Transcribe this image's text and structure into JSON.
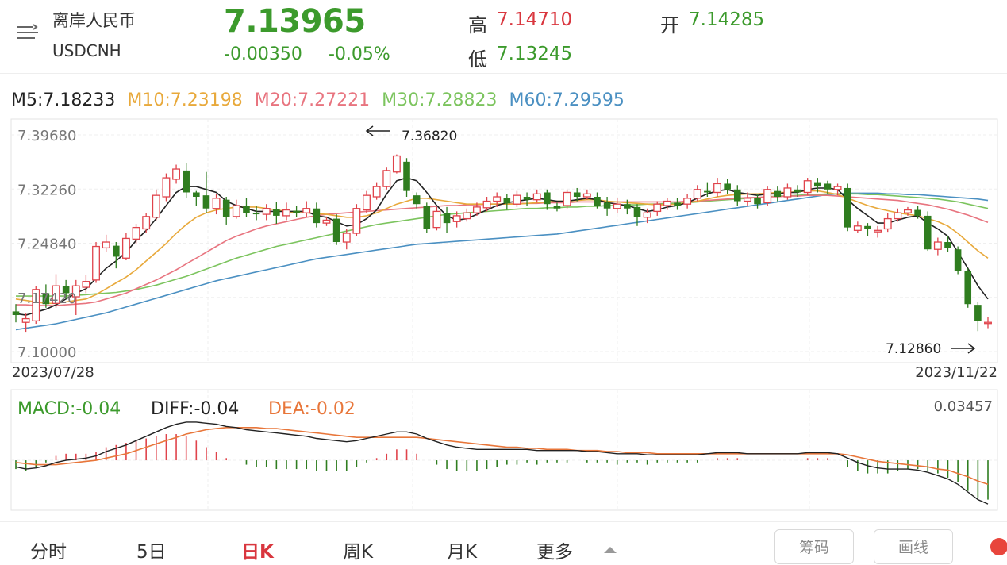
{
  "header": {
    "name": "离岸人民币",
    "code": "USDCNH",
    "price": "7.13965",
    "change": "-0.00350",
    "change_pct": "-0.05%",
    "high_label": "高",
    "high": "7.14710",
    "low_label": "低",
    "low": "7.13245",
    "open_label": "开",
    "open": "7.14285"
  },
  "ma_legend": {
    "m5": "M5:7.18233",
    "m10": "M10:7.23198",
    "m20": "M20:7.27221",
    "m30": "M30:7.28823",
    "m60": "M60:7.29595"
  },
  "colors": {
    "up": "#e0434b",
    "down": "#2f7d1f",
    "ma5": "#222222",
    "ma10": "#e8a93b",
    "ma20": "#e8747f",
    "ma30": "#7cc45e",
    "ma60": "#4b90c2",
    "macd_label": "#3c9a2c",
    "dea": "#e8763a"
  },
  "chart_data": {
    "type": "candlestick",
    "y_ticks": [
      "7.39680",
      "7.32260",
      "7.24840",
      "7.17420",
      "7.10000"
    ],
    "ylim": [
      7.1,
      7.3968
    ],
    "x_start": "2023/07/28",
    "x_end": "2023/11/22",
    "annotation_high": "7.36820",
    "annotation_low": "7.12860",
    "candles": [
      [
        7.155,
        7.15,
        7.165,
        7.14
      ],
      [
        7.14,
        7.145,
        7.152,
        7.126
      ],
      [
        7.142,
        7.185,
        7.19,
        7.138
      ],
      [
        7.18,
        7.165,
        7.192,
        7.16
      ],
      [
        7.166,
        7.19,
        7.206,
        7.16
      ],
      [
        7.19,
        7.18,
        7.198,
        7.172
      ],
      [
        7.175,
        7.19,
        7.198,
        7.15
      ],
      [
        7.188,
        7.196,
        7.205,
        7.18
      ],
      [
        7.198,
        7.244,
        7.25,
        7.194
      ],
      [
        7.242,
        7.25,
        7.26,
        7.236
      ],
      [
        7.245,
        7.23,
        7.25,
        7.214
      ],
      [
        7.228,
        7.255,
        7.262,
        7.225
      ],
      [
        7.254,
        7.27,
        7.275,
        7.248
      ],
      [
        7.268,
        7.285,
        7.29,
        7.262
      ],
      [
        7.284,
        7.314,
        7.322,
        7.28
      ],
      [
        7.312,
        7.338,
        7.344,
        7.306
      ],
      [
        7.336,
        7.35,
        7.356,
        7.33
      ],
      [
        7.348,
        7.318,
        7.358,
        7.31
      ],
      [
        7.318,
        7.312,
        7.32,
        7.3
      ],
      [
        7.314,
        7.296,
        7.346,
        7.29
      ],
      [
        7.296,
        7.31,
        7.316,
        7.288
      ],
      [
        7.308,
        7.284,
        7.312,
        7.274
      ],
      [
        7.285,
        7.3,
        7.308,
        7.282
      ],
      [
        7.3,
        7.29,
        7.31,
        7.284
      ],
      [
        7.29,
        7.288,
        7.3,
        7.28
      ],
      [
        7.288,
        7.296,
        7.302,
        7.28
      ],
      [
        7.295,
        7.286,
        7.305,
        7.275
      ],
      [
        7.286,
        7.294,
        7.304,
        7.28
      ],
      [
        7.293,
        7.29,
        7.3,
        7.284
      ],
      [
        7.29,
        7.296,
        7.306,
        7.284
      ],
      [
        7.296,
        7.276,
        7.304,
        7.27
      ],
      [
        7.276,
        7.28,
        7.285,
        7.272
      ],
      [
        7.282,
        7.25,
        7.288,
        7.246
      ],
      [
        7.25,
        7.262,
        7.268,
        7.24
      ],
      [
        7.262,
        7.296,
        7.302,
        7.258
      ],
      [
        7.294,
        7.314,
        7.32,
        7.29
      ],
      [
        7.312,
        7.326,
        7.332,
        7.308
      ],
      [
        7.326,
        7.348,
        7.352,
        7.322
      ],
      [
        7.346,
        7.368,
        7.37,
        7.344
      ],
      [
        7.36,
        7.32,
        7.365,
        7.312
      ],
      [
        7.314,
        7.302,
        7.318,
        7.296
      ],
      [
        7.3,
        7.268,
        7.304,
        7.262
      ],
      [
        7.27,
        7.292,
        7.298,
        7.266
      ],
      [
        7.29,
        7.276,
        7.298,
        7.262
      ],
      [
        7.278,
        7.286,
        7.292,
        7.27
      ],
      [
        7.282,
        7.29,
        7.296,
        7.278
      ],
      [
        7.29,
        7.298,
        7.304,
        7.286
      ],
      [
        7.297,
        7.306,
        7.312,
        7.292
      ],
      [
        7.306,
        7.312,
        7.318,
        7.298
      ],
      [
        7.31,
        7.303,
        7.316,
        7.294
      ],
      [
        7.302,
        7.314,
        7.32,
        7.298
      ],
      [
        7.312,
        7.308,
        7.318,
        7.3
      ],
      [
        7.308,
        7.316,
        7.322,
        7.304
      ],
      [
        7.318,
        7.302,
        7.322,
        7.294
      ],
      [
        7.3,
        7.296,
        7.304,
        7.292
      ],
      [
        7.3,
        7.318,
        7.322,
        7.296
      ],
      [
        7.318,
        7.312,
        7.324,
        7.306
      ],
      [
        7.312,
        7.316,
        7.322,
        7.308
      ],
      [
        7.312,
        7.3,
        7.318,
        7.296
      ],
      [
        7.304,
        7.296,
        7.312,
        7.286
      ],
      [
        7.296,
        7.302,
        7.31,
        7.29
      ],
      [
        7.302,
        7.296,
        7.308,
        7.288
      ],
      [
        7.298,
        7.284,
        7.302,
        7.272
      ],
      [
        7.284,
        7.29,
        7.296,
        7.276
      ],
      [
        7.292,
        7.302,
        7.306,
        7.286
      ],
      [
        7.3,
        7.306,
        7.31,
        7.294
      ],
      [
        7.304,
        7.3,
        7.31,
        7.294
      ],
      [
        7.302,
        7.31,
        7.316,
        7.296
      ],
      [
        7.31,
        7.322,
        7.328,
        7.306
      ],
      [
        7.32,
        7.318,
        7.332,
        7.312
      ],
      [
        7.318,
        7.33,
        7.338,
        7.312
      ],
      [
        7.33,
        7.322,
        7.336,
        7.316
      ],
      [
        7.322,
        7.306,
        7.328,
        7.3
      ],
      [
        7.306,
        7.31,
        7.318,
        7.3
      ],
      [
        7.31,
        7.302,
        7.316,
        7.296
      ],
      [
        7.304,
        7.322,
        7.326,
        7.3
      ],
      [
        7.32,
        7.312,
        7.326,
        7.306
      ],
      [
        7.312,
        7.324,
        7.33,
        7.308
      ],
      [
        7.322,
        7.318,
        7.328,
        7.312
      ],
      [
        7.318,
        7.334,
        7.338,
        7.314
      ],
      [
        7.332,
        7.326,
        7.338,
        7.318
      ],
      [
        7.33,
        7.322,
        7.334,
        7.316
      ],
      [
        7.322,
        7.326,
        7.33,
        7.314
      ],
      [
        7.324,
        7.27,
        7.33,
        7.265
      ],
      [
        7.266,
        7.272,
        7.278,
        7.262
      ],
      [
        7.272,
        7.268,
        7.276,
        7.258
      ],
      [
        7.264,
        7.266,
        7.272,
        7.256
      ],
      [
        7.268,
        7.282,
        7.29,
        7.264
      ],
      [
        7.282,
        7.29,
        7.296,
        7.278
      ],
      [
        7.29,
        7.294,
        7.298,
        7.286
      ],
      [
        7.294,
        7.286,
        7.3,
        7.282
      ],
      [
        7.286,
        7.24,
        7.292,
        7.238
      ],
      [
        7.24,
        7.25,
        7.256,
        7.232
      ],
      [
        7.25,
        7.242,
        7.258,
        7.236
      ],
      [
        7.24,
        7.21,
        7.244,
        7.206
      ],
      [
        7.21,
        7.165,
        7.214,
        7.16
      ],
      [
        7.164,
        7.142,
        7.168,
        7.128
      ],
      [
        7.14,
        7.14,
        7.147,
        7.132
      ]
    ],
    "ma": {
      "ma5": [
        7.152,
        7.15,
        7.154,
        7.158,
        7.164,
        7.172,
        7.18,
        7.186,
        7.2,
        7.214,
        7.224,
        7.236,
        7.252,
        7.266,
        7.282,
        7.3,
        7.318,
        7.326,
        7.326,
        7.322,
        7.318,
        7.306,
        7.3,
        7.296,
        7.292,
        7.292,
        7.292,
        7.292,
        7.292,
        7.292,
        7.286,
        7.284,
        7.278,
        7.272,
        7.274,
        7.282,
        7.294,
        7.316,
        7.334,
        7.338,
        7.334,
        7.318,
        7.3,
        7.286,
        7.28,
        7.282,
        7.288,
        7.294,
        7.3,
        7.304,
        7.306,
        7.308,
        7.31,
        7.308,
        7.306,
        7.306,
        7.308,
        7.31,
        7.308,
        7.304,
        7.302,
        7.3,
        7.296,
        7.292,
        7.294,
        7.298,
        7.3,
        7.304,
        7.31,
        7.316,
        7.32,
        7.322,
        7.318,
        7.316,
        7.314,
        7.316,
        7.316,
        7.318,
        7.318,
        7.322,
        7.324,
        7.324,
        7.322,
        7.308,
        7.296,
        7.286,
        7.276,
        7.276,
        7.28,
        7.284,
        7.286,
        7.276,
        7.268,
        7.258,
        7.236,
        7.214,
        7.19,
        7.172
      ],
      "ma10": [
        7.172,
        7.17,
        7.168,
        7.166,
        7.166,
        7.168,
        7.17,
        7.172,
        7.178,
        7.186,
        7.194,
        7.202,
        7.212,
        7.224,
        7.236,
        7.248,
        7.262,
        7.274,
        7.284,
        7.29,
        7.294,
        7.296,
        7.298,
        7.298,
        7.298,
        7.296,
        7.294,
        7.292,
        7.29,
        7.29,
        7.289,
        7.288,
        7.286,
        7.284,
        7.284,
        7.286,
        7.29,
        7.296,
        7.302,
        7.306,
        7.31,
        7.31,
        7.308,
        7.306,
        7.304,
        7.302,
        7.302,
        7.302,
        7.302,
        7.302,
        7.302,
        7.303,
        7.304,
        7.305,
        7.306,
        7.306,
        7.307,
        7.308,
        7.308,
        7.306,
        7.305,
        7.304,
        7.303,
        7.302,
        7.301,
        7.301,
        7.302,
        7.304,
        7.306,
        7.309,
        7.312,
        7.314,
        7.315,
        7.316,
        7.316,
        7.317,
        7.318,
        7.318,
        7.319,
        7.32,
        7.32,
        7.318,
        7.315,
        7.31,
        7.305,
        7.3,
        7.296,
        7.293,
        7.29,
        7.288,
        7.286,
        7.282,
        7.278,
        7.272,
        7.262,
        7.25,
        7.238,
        7.228
      ],
      "ma20": [
        7.164,
        7.164,
        7.163,
        7.163,
        7.163,
        7.164,
        7.165,
        7.166,
        7.168,
        7.172,
        7.176,
        7.18,
        7.186,
        7.192,
        7.198,
        7.205,
        7.212,
        7.22,
        7.228,
        7.236,
        7.244,
        7.252,
        7.258,
        7.263,
        7.268,
        7.272,
        7.275,
        7.278,
        7.281,
        7.284,
        7.286,
        7.288,
        7.289,
        7.29,
        7.291,
        7.292,
        7.293,
        7.294,
        7.295,
        7.296,
        7.297,
        7.298,
        7.299,
        7.3,
        7.3,
        7.301,
        7.301,
        7.302,
        7.302,
        7.302,
        7.303,
        7.303,
        7.303,
        7.304,
        7.304,
        7.304,
        7.305,
        7.305,
        7.305,
        7.305,
        7.305,
        7.305,
        7.305,
        7.305,
        7.305,
        7.305,
        7.305,
        7.306,
        7.306,
        7.307,
        7.308,
        7.309,
        7.31,
        7.311,
        7.311,
        7.312,
        7.312,
        7.313,
        7.313,
        7.314,
        7.314,
        7.314,
        7.313,
        7.312,
        7.311,
        7.31,
        7.309,
        7.308,
        7.307,
        7.305,
        7.303,
        7.301,
        7.298,
        7.295,
        7.291,
        7.287,
        7.282,
        7.277
      ],
      "ma30": [
        7.176,
        7.176,
        7.176,
        7.176,
        7.176,
        7.176,
        7.177,
        7.178,
        7.179,
        7.18,
        7.181,
        7.183,
        7.185,
        7.188,
        7.191,
        7.195,
        7.199,
        7.203,
        7.208,
        7.213,
        7.218,
        7.223,
        7.228,
        7.232,
        7.236,
        7.24,
        7.244,
        7.247,
        7.25,
        7.253,
        7.256,
        7.259,
        7.262,
        7.265,
        7.268,
        7.271,
        7.274,
        7.276,
        7.278,
        7.28,
        7.282,
        7.284,
        7.286,
        7.288,
        7.289,
        7.29,
        7.291,
        7.292,
        7.293,
        7.294,
        7.295,
        7.296,
        7.296,
        7.297,
        7.297,
        7.298,
        7.298,
        7.299,
        7.299,
        7.3,
        7.3,
        7.301,
        7.301,
        7.302,
        7.302,
        7.303,
        7.303,
        7.304,
        7.305,
        7.306,
        7.307,
        7.308,
        7.309,
        7.31,
        7.311,
        7.312,
        7.313,
        7.313,
        7.314,
        7.315,
        7.315,
        7.316,
        7.316,
        7.316,
        7.316,
        7.315,
        7.315,
        7.314,
        7.313,
        7.312,
        7.311,
        7.31,
        7.309,
        7.307,
        7.305,
        7.302,
        7.299,
        7.296
      ],
      "ma60": [
        7.13,
        7.132,
        7.134,
        7.136,
        7.138,
        7.141,
        7.144,
        7.147,
        7.15,
        7.153,
        7.157,
        7.161,
        7.165,
        7.169,
        7.173,
        7.177,
        7.181,
        7.185,
        7.189,
        7.193,
        7.197,
        7.2,
        7.203,
        7.206,
        7.209,
        7.212,
        7.215,
        7.218,
        7.221,
        7.224,
        7.227,
        7.229,
        7.231,
        7.233,
        7.235,
        7.237,
        7.239,
        7.241,
        7.243,
        7.245,
        7.247,
        7.248,
        7.249,
        7.25,
        7.251,
        7.252,
        7.253,
        7.254,
        7.255,
        7.256,
        7.257,
        7.258,
        7.259,
        7.26,
        7.261,
        7.263,
        7.265,
        7.267,
        7.269,
        7.271,
        7.273,
        7.275,
        7.277,
        7.279,
        7.281,
        7.283,
        7.285,
        7.287,
        7.289,
        7.291,
        7.293,
        7.295,
        7.297,
        7.299,
        7.301,
        7.303,
        7.305,
        7.307,
        7.309,
        7.311,
        7.313,
        7.315,
        7.316,
        7.317,
        7.317,
        7.317,
        7.317,
        7.316,
        7.316,
        7.315,
        7.315,
        7.314,
        7.313,
        7.312,
        7.311,
        7.31,
        7.309,
        7.307
      ]
    },
    "macd": {
      "macd_label": "MACD:-0.04",
      "diff_label": "DIFF:-0.04",
      "dea_label": "DEA:-0.02",
      "right_value": "0.03457",
      "ylim": [
        -0.045,
        0.04
      ],
      "diff": [
        -0.006,
        -0.008,
        -0.007,
        -0.005,
        -0.002,
        0.0,
        0.001,
        0.002,
        0.004,
        0.008,
        0.011,
        0.014,
        0.018,
        0.022,
        0.026,
        0.03,
        0.033,
        0.035,
        0.035,
        0.034,
        0.033,
        0.031,
        0.03,
        0.028,
        0.027,
        0.026,
        0.025,
        0.024,
        0.023,
        0.022,
        0.02,
        0.019,
        0.018,
        0.017,
        0.018,
        0.02,
        0.022,
        0.024,
        0.026,
        0.026,
        0.024,
        0.02,
        0.017,
        0.014,
        0.012,
        0.011,
        0.01,
        0.01,
        0.01,
        0.01,
        0.01,
        0.01,
        0.009,
        0.009,
        0.009,
        0.009,
        0.009,
        0.008,
        0.008,
        0.007,
        0.006,
        0.006,
        0.006,
        0.005,
        0.005,
        0.005,
        0.005,
        0.005,
        0.005,
        0.006,
        0.007,
        0.007,
        0.007,
        0.006,
        0.006,
        0.006,
        0.006,
        0.006,
        0.006,
        0.007,
        0.007,
        0.007,
        0.006,
        0.002,
        -0.002,
        -0.005,
        -0.007,
        -0.008,
        -0.008,
        -0.008,
        -0.009,
        -0.011,
        -0.014,
        -0.017,
        -0.022,
        -0.029,
        -0.036,
        -0.04
      ],
      "dea": [
        -0.002,
        -0.003,
        -0.004,
        -0.004,
        -0.004,
        -0.003,
        -0.002,
        -0.001,
        0.0,
        0.002,
        0.004,
        0.006,
        0.009,
        0.012,
        0.015,
        0.018,
        0.021,
        0.024,
        0.026,
        0.028,
        0.029,
        0.03,
        0.03,
        0.03,
        0.03,
        0.029,
        0.029,
        0.028,
        0.027,
        0.026,
        0.025,
        0.024,
        0.023,
        0.022,
        0.021,
        0.021,
        0.021,
        0.021,
        0.021,
        0.021,
        0.021,
        0.02,
        0.019,
        0.018,
        0.017,
        0.016,
        0.015,
        0.014,
        0.013,
        0.012,
        0.012,
        0.011,
        0.011,
        0.01,
        0.01,
        0.01,
        0.009,
        0.009,
        0.009,
        0.008,
        0.008,
        0.007,
        0.007,
        0.007,
        0.006,
        0.006,
        0.006,
        0.006,
        0.006,
        0.006,
        0.006,
        0.006,
        0.006,
        0.006,
        0.006,
        0.006,
        0.006,
        0.006,
        0.006,
        0.006,
        0.006,
        0.006,
        0.006,
        0.005,
        0.003,
        0.001,
        -0.001,
        -0.002,
        -0.003,
        -0.004,
        -0.005,
        -0.006,
        -0.008,
        -0.009,
        -0.012,
        -0.015,
        -0.019,
        -0.022
      ]
    }
  },
  "tabs": {
    "fenshi": "分时",
    "five_day": "5日",
    "day_k": "日K",
    "week_k": "周K",
    "month_k": "月K",
    "more": "更多"
  },
  "buttons": {
    "chouma": "筹码",
    "huaxian": "画线"
  }
}
